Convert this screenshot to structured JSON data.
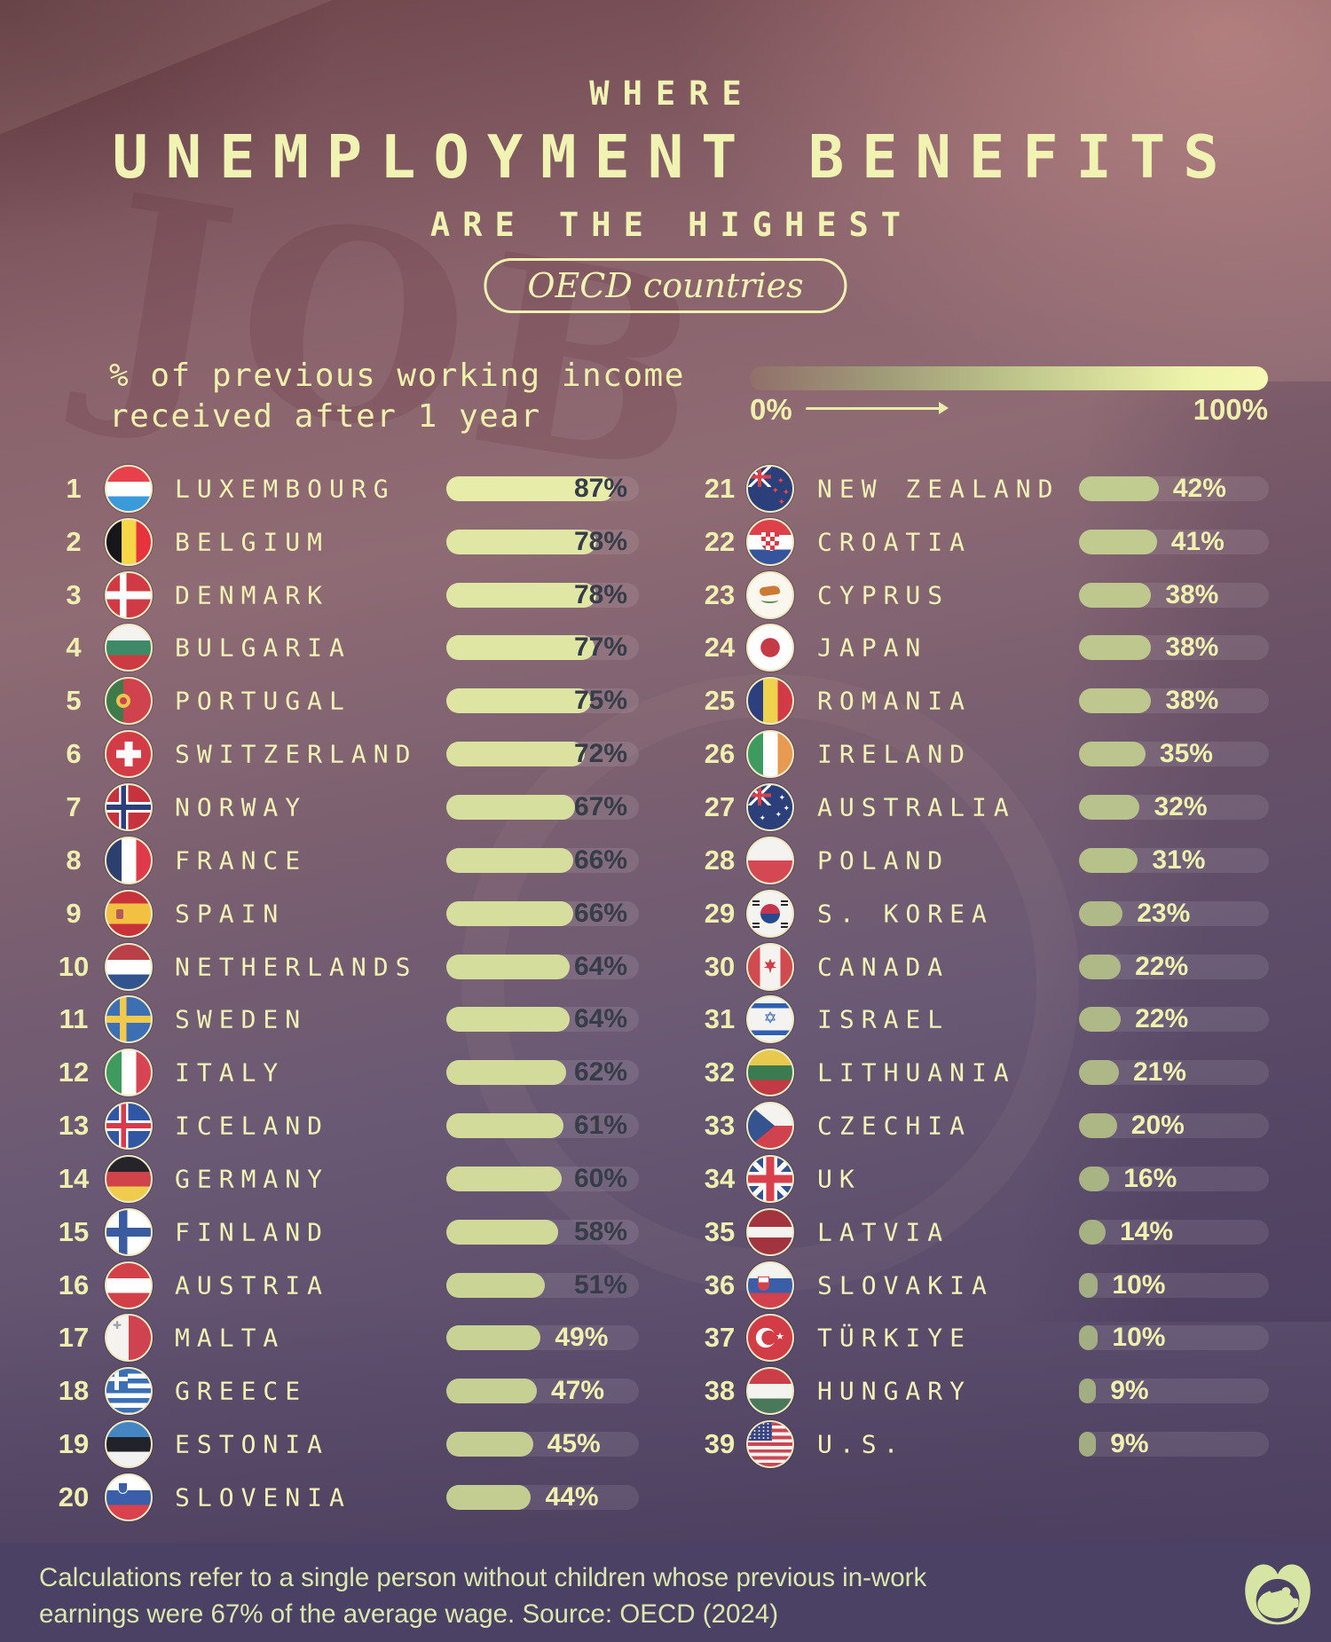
{
  "title": {
    "top": "WHERE",
    "main": "UNEMPLOYMENT BENEFITS",
    "sub": "ARE THE HIGHEST",
    "badge": "OECD countries"
  },
  "legend": {
    "line1": "% of previous working income",
    "line2": "received after 1 year",
    "min_label": "0%",
    "max_label": "100%"
  },
  "decor": {
    "job_text": "JOB"
  },
  "colors": {
    "accent_text": "#f1f3b3",
    "value_dark": "#363c48",
    "value_light": "#eff1ae",
    "bar_track": "rgba(255,255,255,0.095)",
    "gradient_low": "#9aa57d",
    "gradient_mid": "#c9d394",
    "gradient_high": "#f2f6b0",
    "footer_bg": "#4a4164"
  },
  "list": {
    "columns": [
      {
        "items": [
          {
            "rank": 1,
            "name": "LUXEMBOURG",
            "value": 87,
            "label": "87%",
            "flag": "lu"
          },
          {
            "rank": 2,
            "name": "BELGIUM",
            "value": 78,
            "label": "78%",
            "flag": "be"
          },
          {
            "rank": 3,
            "name": "DENMARK",
            "value": 78,
            "label": "78%",
            "flag": "dk"
          },
          {
            "rank": 4,
            "name": "BULGARIA",
            "value": 77,
            "label": "77%",
            "flag": "bg"
          },
          {
            "rank": 5,
            "name": "PORTUGAL",
            "value": 75,
            "label": "75%",
            "flag": "pt"
          },
          {
            "rank": 6,
            "name": "SWITZERLAND",
            "value": 72,
            "label": "72%",
            "flag": "ch"
          },
          {
            "rank": 7,
            "name": "NORWAY",
            "value": 67,
            "label": "67%",
            "flag": "no"
          },
          {
            "rank": 8,
            "name": "FRANCE",
            "value": 66,
            "label": "66%",
            "flag": "fr"
          },
          {
            "rank": 9,
            "name": "SPAIN",
            "value": 66,
            "label": "66%",
            "flag": "es"
          },
          {
            "rank": 10,
            "name": "NETHERLANDS",
            "value": 64,
            "label": "64%",
            "flag": "nl"
          },
          {
            "rank": 11,
            "name": "SWEDEN",
            "value": 64,
            "label": "64%",
            "flag": "se"
          },
          {
            "rank": 12,
            "name": "ITALY",
            "value": 62,
            "label": "62%",
            "flag": "it"
          },
          {
            "rank": 13,
            "name": "ICELAND",
            "value": 61,
            "label": "61%",
            "flag": "isl"
          },
          {
            "rank": 14,
            "name": "GERMANY",
            "value": 60,
            "label": "60%",
            "flag": "de"
          },
          {
            "rank": 15,
            "name": "FINLAND",
            "value": 58,
            "label": "58%",
            "flag": "fi"
          },
          {
            "rank": 16,
            "name": "AUSTRIA",
            "value": 51,
            "label": "51%",
            "flag": "at"
          },
          {
            "rank": 17,
            "name": "MALTA",
            "value": 49,
            "label": "49%",
            "flag": "mt"
          },
          {
            "rank": 18,
            "name": "GREECE",
            "value": 47,
            "label": "47%",
            "flag": "gr"
          },
          {
            "rank": 19,
            "name": "ESTONIA",
            "value": 45,
            "label": "45%",
            "flag": "ee"
          },
          {
            "rank": 20,
            "name": "SLOVENIA",
            "value": 44,
            "label": "44%",
            "flag": "si"
          }
        ]
      },
      {
        "items": [
          {
            "rank": 21,
            "name": "NEW ZEALAND",
            "value": 42,
            "label": "42%",
            "flag": "nz"
          },
          {
            "rank": 22,
            "name": "CROATIA",
            "value": 41,
            "label": "41%",
            "flag": "hr"
          },
          {
            "rank": 23,
            "name": "CYPRUS",
            "value": 38,
            "label": "38%",
            "flag": "cy"
          },
          {
            "rank": 24,
            "name": "JAPAN",
            "value": 38,
            "label": "38%",
            "flag": "jp"
          },
          {
            "rank": 25,
            "name": "ROMANIA",
            "value": 38,
            "label": "38%",
            "flag": "ro"
          },
          {
            "rank": 26,
            "name": "IRELAND",
            "value": 35,
            "label": "35%",
            "flag": "ie"
          },
          {
            "rank": 27,
            "name": "AUSTRALIA",
            "value": 32,
            "label": "32%",
            "flag": "au"
          },
          {
            "rank": 28,
            "name": "POLAND",
            "value": 31,
            "label": "31%",
            "flag": "pl"
          },
          {
            "rank": 29,
            "name": "S. KOREA",
            "value": 23,
            "label": "23%",
            "flag": "kr"
          },
          {
            "rank": 30,
            "name": "CANADA",
            "value": 22,
            "label": "22%",
            "flag": "ca"
          },
          {
            "rank": 31,
            "name": "ISRAEL",
            "value": 22,
            "label": "22%",
            "flag": "il"
          },
          {
            "rank": 32,
            "name": "LITHUANIA",
            "value": 21,
            "label": "21%",
            "flag": "lt"
          },
          {
            "rank": 33,
            "name": "CZECHIA",
            "value": 20,
            "label": "20%",
            "flag": "cz"
          },
          {
            "rank": 34,
            "name": "UK",
            "value": 16,
            "label": "16%",
            "flag": "uk"
          },
          {
            "rank": 35,
            "name": "LATVIA",
            "value": 14,
            "label": "14%",
            "flag": "lv"
          },
          {
            "rank": 36,
            "name": "SLOVAKIA",
            "value": 10,
            "label": "10%",
            "flag": "sk"
          },
          {
            "rank": 37,
            "name": "TÜRKIYE",
            "value": 10,
            "label": "10%",
            "flag": "tr"
          },
          {
            "rank": 38,
            "name": "HUNGARY",
            "value": 9,
            "label": "9%",
            "flag": "hu"
          },
          {
            "rank": 39,
            "name": "U.S.",
            "value": 9,
            "label": "9%",
            "flag": "us"
          }
        ]
      }
    ]
  },
  "footer": {
    "note_line1": "Calculations refer to a single person without children whose previous in-work",
    "note_line2": "earnings were 67% of the average wage. Source: OECD (2024)"
  },
  "chart_data": {
    "type": "bar",
    "title": "Where Unemployment Benefits Are the Highest",
    "subtitle": "OECD countries",
    "xlabel": "% of previous working income received after 1 year",
    "unit": "%",
    "xlim": [
      0,
      100
    ],
    "legend_min": "0%",
    "legend_max": "100%",
    "categories": [
      "Luxembourg",
      "Belgium",
      "Denmark",
      "Bulgaria",
      "Portugal",
      "Switzerland",
      "Norway",
      "France",
      "Spain",
      "Netherlands",
      "Sweden",
      "Italy",
      "Iceland",
      "Germany",
      "Finland",
      "Austria",
      "Malta",
      "Greece",
      "Estonia",
      "Slovenia",
      "New Zealand",
      "Croatia",
      "Cyprus",
      "Japan",
      "Romania",
      "Ireland",
      "Australia",
      "Poland",
      "S. Korea",
      "Canada",
      "Israel",
      "Lithuania",
      "Czechia",
      "UK",
      "Latvia",
      "Slovakia",
      "Türkiye",
      "Hungary",
      "U.S."
    ],
    "values": [
      87,
      78,
      78,
      77,
      75,
      72,
      67,
      66,
      66,
      64,
      64,
      62,
      61,
      60,
      58,
      51,
      49,
      47,
      45,
      44,
      42,
      41,
      38,
      38,
      38,
      35,
      32,
      31,
      23,
      22,
      22,
      21,
      20,
      16,
      14,
      10,
      10,
      9,
      9
    ],
    "source": "OECD (2024)"
  }
}
